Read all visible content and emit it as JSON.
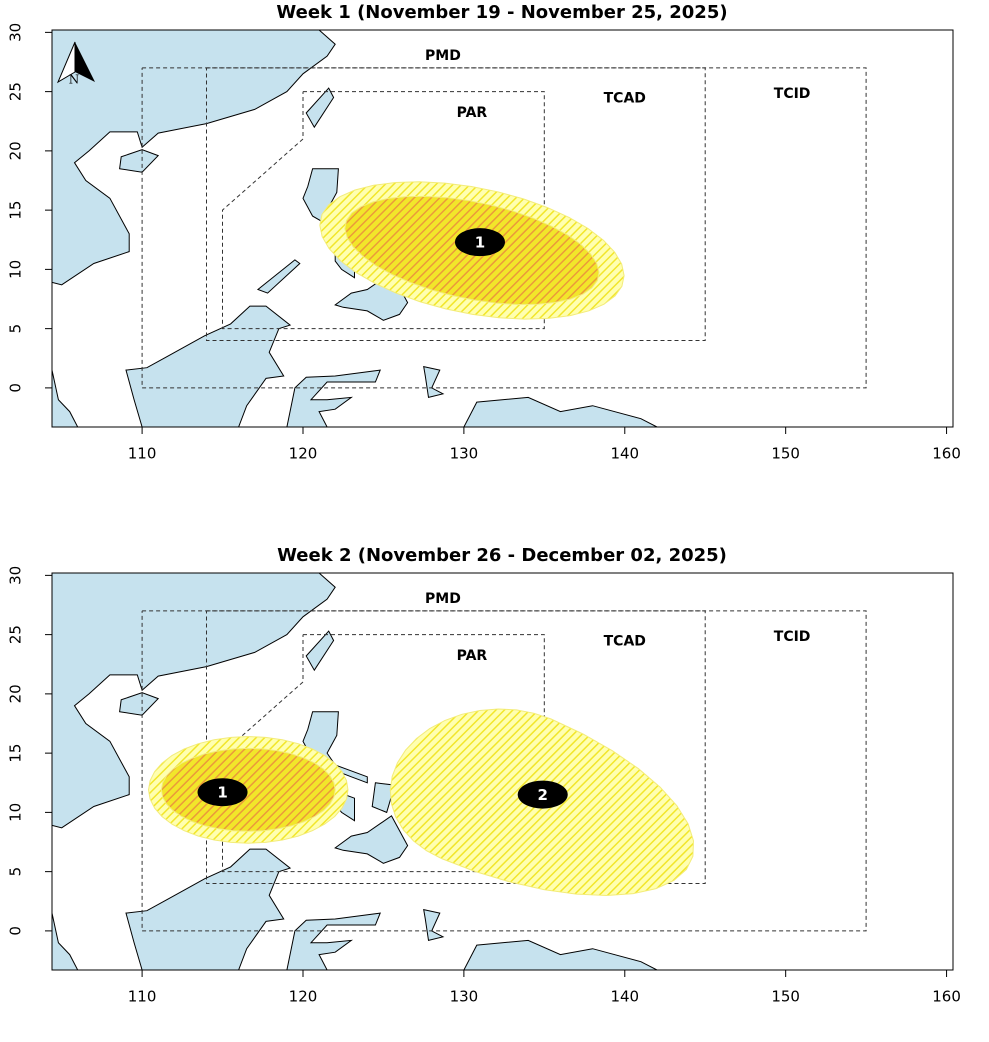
{
  "maps": [
    {
      "title": "Week 1 (November 19 - November 25, 2025)",
      "north": "N",
      "xlim": [
        104.4,
        160.4
      ],
      "ylim": [
        -3.3,
        30.2
      ],
      "xticks": [
        110,
        120,
        130,
        140,
        150,
        160
      ],
      "yticks": [
        0,
        5,
        10,
        15,
        20,
        25,
        30
      ],
      "regions": [
        "PMD",
        "PAR",
        "TCAD",
        "TCID"
      ],
      "markers": [
        {
          "label": "1",
          "lon": 131,
          "lat": 12.3
        }
      ]
    },
    {
      "title": "Week 2 (November 26 - December 02, 2025)",
      "xlim": [
        104.4,
        160.4
      ],
      "ylim": [
        -3.3,
        30.2
      ],
      "xticks": [
        110,
        120,
        130,
        140,
        150,
        160
      ],
      "yticks": [
        0,
        5,
        10,
        15,
        20,
        25,
        30
      ],
      "regions": [
        "PMD",
        "PAR",
        "TCAD",
        "TCID"
      ],
      "markers": [
        {
          "label": "1",
          "lon": 115,
          "lat": 11.7
        },
        {
          "label": "2",
          "lon": 134.9,
          "lat": 11.5
        }
      ]
    }
  ]
}
